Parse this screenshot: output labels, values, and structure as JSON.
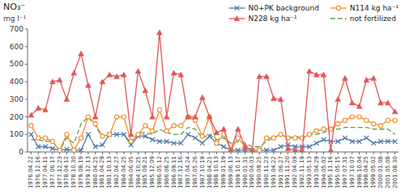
{
  "chart_data": {
    "type": "line",
    "title": "NO₃⁻",
    "subtitle": "mg l⁻¹",
    "legend": "upper right",
    "ylim": [
      0,
      700
    ],
    "yticks": [
      0,
      100,
      200,
      300,
      400,
      500,
      600,
      700
    ],
    "categories": [
      "1976.04.22",
      "1976.12.16",
      "1977.04.11",
      "1977.06.17",
      "1977.12.23",
      "1978.04.12",
      "1978.10.30",
      "1979.08.19",
      "1979.12.13",
      "1980.04.25",
      "1981.04.29",
      "1981.10.13",
      "1982.04.27",
      "1984.04.25",
      "1984.06.05",
      "1984.10.25",
      "1985.09.21",
      "1985.12.09",
      "1986.05.12",
      "1986.08.25",
      "1986.09.11",
      "1987.12.16",
      "1987.04.24",
      "1987.05.26",
      "1987.10.19",
      "1988.04.21",
      "1988.10.13",
      "1989.01.19",
      "1989.06.13",
      "1989.10.17",
      "1990.01.31",
      "1990.04.03",
      "1990.09.25",
      "1990.11.23",
      "1991.04.22",
      "1991.06.27",
      "1991.11.20",
      "1992.04.09",
      "1992.11.19",
      "1993.05.13",
      "1993.04.29",
      "1994.05.02",
      "1995.11.16",
      "1995.05.15",
      "1997.07.31",
      "1997.10.07",
      "1998.10.04",
      "1998.04.25",
      "1999.05.02",
      "2000.01.08",
      "2001.05.08",
      "2001.08.30"
    ],
    "series": [
      {
        "name": "N0+PK background",
        "color": "#4e79a7",
        "marker": "x",
        "line_style": "solid",
        "values": [
          100,
          30,
          30,
          20,
          10,
          15,
          10,
          10,
          100,
          30,
          40,
          100,
          100,
          100,
          40,
          90,
          90,
          70,
          60,
          60,
          50,
          50,
          100,
          80,
          50,
          90,
          50,
          30,
          10,
          10,
          10,
          10,
          10,
          10,
          10,
          30,
          40,
          30,
          30,
          30,
          50,
          70,
          60,
          60,
          80,
          60,
          60,
          80,
          50,
          60,
          60,
          60
        ]
      },
      {
        "name": "N114 kg ha⁻¹",
        "color": "#f28e2b",
        "marker": "circle",
        "line_style": "solid",
        "values": [
          150,
          80,
          80,
          60,
          10,
          100,
          10,
          80,
          200,
          160,
          90,
          100,
          200,
          200,
          60,
          100,
          150,
          120,
          240,
          120,
          150,
          150,
          200,
          180,
          90,
          200,
          50,
          100,
          10,
          80,
          30,
          10,
          10,
          80,
          80,
          100,
          80,
          80,
          80,
          100,
          120,
          130,
          130,
          160,
          180,
          200,
          200,
          180,
          160,
          150,
          180,
          180
        ]
      },
      {
        "name": "N228 kg ha⁻¹",
        "color": "#e15759",
        "marker": "triangle",
        "line_style": "solid",
        "values": [
          210,
          250,
          240,
          400,
          410,
          300,
          450,
          560,
          380,
          200,
          400,
          440,
          430,
          440,
          100,
          460,
          350,
          200,
          680,
          200,
          450,
          440,
          200,
          200,
          310,
          200,
          110,
          130,
          10,
          130,
          30,
          10,
          430,
          430,
          305,
          300,
          20,
          10,
          10,
          460,
          440,
          440,
          10,
          300,
          420,
          280,
          260,
          410,
          420,
          280,
          280,
          230
        ]
      },
      {
        "name": "not fertilized",
        "color": "#59a14f",
        "marker": "none",
        "line_style": "dashed",
        "values": [
          70,
          70,
          60,
          60,
          10,
          80,
          50,
          160,
          200,
          150,
          80,
          100,
          100,
          100,
          50,
          110,
          110,
          100,
          130,
          110,
          100,
          100,
          140,
          130,
          80,
          100,
          70,
          80,
          50,
          60,
          50,
          30,
          30,
          60,
          80,
          100,
          80,
          90,
          80,
          100,
          100,
          110,
          130,
          130,
          140,
          140,
          140,
          140,
          130,
          130,
          130,
          100
        ]
      }
    ]
  }
}
